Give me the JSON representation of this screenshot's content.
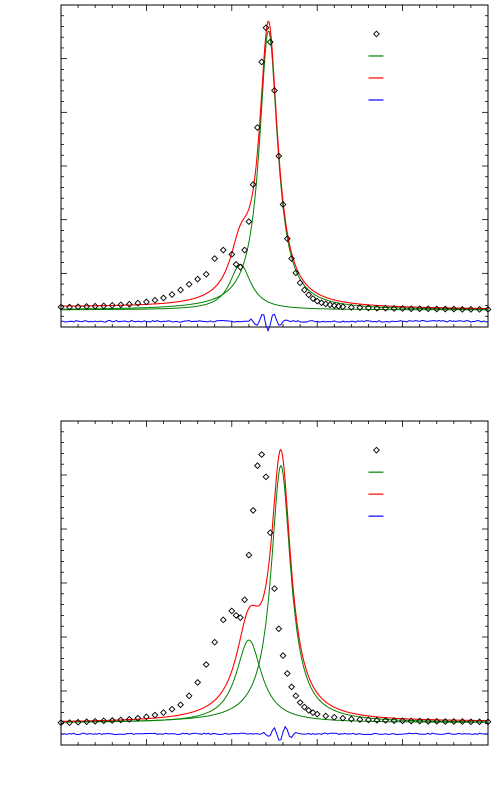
{
  "chart_data": [
    {
      "type": "line",
      "xlim": [
        0,
        100
      ],
      "ylim": [
        -0.05,
        1.08
      ],
      "legend_position": "top-right",
      "colors": {
        "data": "#000000",
        "component": "#008000",
        "fit": "#ff0000",
        "residual": "#0000ff"
      },
      "series": [
        {
          "role": "data",
          "marker": "diamond",
          "x": [
            0,
            2,
            4,
            6,
            8,
            10,
            12,
            14,
            16,
            18,
            20,
            22,
            24,
            26,
            28,
            30,
            32,
            34,
            36,
            38,
            40,
            41,
            42,
            43,
            44,
            45,
            46,
            47,
            48,
            49,
            50,
            51,
            52,
            53,
            54,
            55,
            56,
            57,
            58,
            59,
            60,
            61,
            62,
            63,
            64,
            65,
            66,
            68,
            70,
            72,
            74,
            76,
            78,
            80,
            82,
            84,
            86,
            88,
            90,
            92,
            94,
            96,
            98,
            100
          ],
          "y": [
            0.02,
            0.02,
            0.021,
            0.022,
            0.023,
            0.024,
            0.026,
            0.028,
            0.03,
            0.034,
            0.038,
            0.044,
            0.052,
            0.064,
            0.08,
            0.1,
            0.118,
            0.135,
            0.19,
            0.22,
            0.205,
            0.17,
            0.16,
            0.22,
            0.32,
            0.45,
            0.65,
            0.88,
            1.0,
            0.95,
            0.78,
            0.55,
            0.38,
            0.26,
            0.19,
            0.14,
            0.105,
            0.08,
            0.063,
            0.05,
            0.041,
            0.035,
            0.031,
            0.028,
            0.025,
            0.023,
            0.021,
            0.019,
            0.018,
            0.017,
            0.016,
            0.016,
            0.015,
            0.015,
            0.014,
            0.014,
            0.014,
            0.013,
            0.013,
            0.013,
            0.012,
            0.012,
            0.012,
            0.012
          ]
        },
        {
          "role": "component",
          "peak_center": 48.6,
          "peak_height": 0.98,
          "peak_width": 2.6,
          "baseline": 0.01
        },
        {
          "role": "component",
          "peak_center": 42.0,
          "peak_height": 0.16,
          "peak_width": 3.0,
          "baseline": 0.01
        },
        {
          "role": "fit",
          "x": [
            0,
            100
          ],
          "y": [
            0.02,
            0.012
          ]
        },
        {
          "role": "residual",
          "offset": -0.03
        }
      ]
    },
    {
      "type": "line",
      "xlim": [
        0,
        100
      ],
      "ylim": [
        -0.1,
        1.35
      ],
      "legend_position": "top-right",
      "colors": {
        "data": "#000000",
        "component": "#008000",
        "fit": "#ff0000",
        "residual": "#0000ff"
      },
      "series": [
        {
          "role": "data",
          "marker": "diamond",
          "x": [
            0,
            2,
            4,
            6,
            8,
            10,
            12,
            14,
            16,
            18,
            20,
            22,
            24,
            26,
            28,
            30,
            32,
            34,
            36,
            38,
            40,
            41,
            42,
            43,
            44,
            45,
            46,
            47,
            48,
            49,
            50,
            51,
            52,
            53,
            54,
            55,
            56,
            57,
            58,
            59,
            60,
            62,
            64,
            66,
            68,
            70,
            72,
            74,
            76,
            78,
            80,
            82,
            84,
            86,
            88,
            90,
            92,
            94,
            96,
            98,
            100
          ],
          "y": [
            0.0,
            0.0,
            0.002,
            0.004,
            0.006,
            0.008,
            0.01,
            0.012,
            0.015,
            0.02,
            0.026,
            0.034,
            0.045,
            0.06,
            0.08,
            0.12,
            0.18,
            0.26,
            0.36,
            0.46,
            0.5,
            0.48,
            0.47,
            0.55,
            0.75,
            0.95,
            1.15,
            1.2,
            1.1,
            0.85,
            0.6,
            0.42,
            0.3,
            0.22,
            0.16,
            0.12,
            0.09,
            0.07,
            0.055,
            0.045,
            0.038,
            0.03,
            0.024,
            0.02,
            0.016,
            0.014,
            0.012,
            0.011,
            0.01,
            0.009,
            0.008,
            0.007,
            0.007,
            0.006,
            0.006,
            0.005,
            0.005,
            0.005,
            0.004,
            0.004,
            0.004
          ]
        },
        {
          "role": "component",
          "peak_center": 51.5,
          "peak_height": 1.15,
          "peak_width": 2.8,
          "baseline": 0.0
        },
        {
          "role": "component",
          "peak_center": 44.0,
          "peak_height": 0.37,
          "peak_width": 3.6,
          "baseline": 0.0
        },
        {
          "role": "fit",
          "x": [
            0,
            100
          ],
          "y": [
            0.0,
            0.004
          ]
        },
        {
          "role": "residual",
          "offset": -0.05
        }
      ]
    }
  ]
}
